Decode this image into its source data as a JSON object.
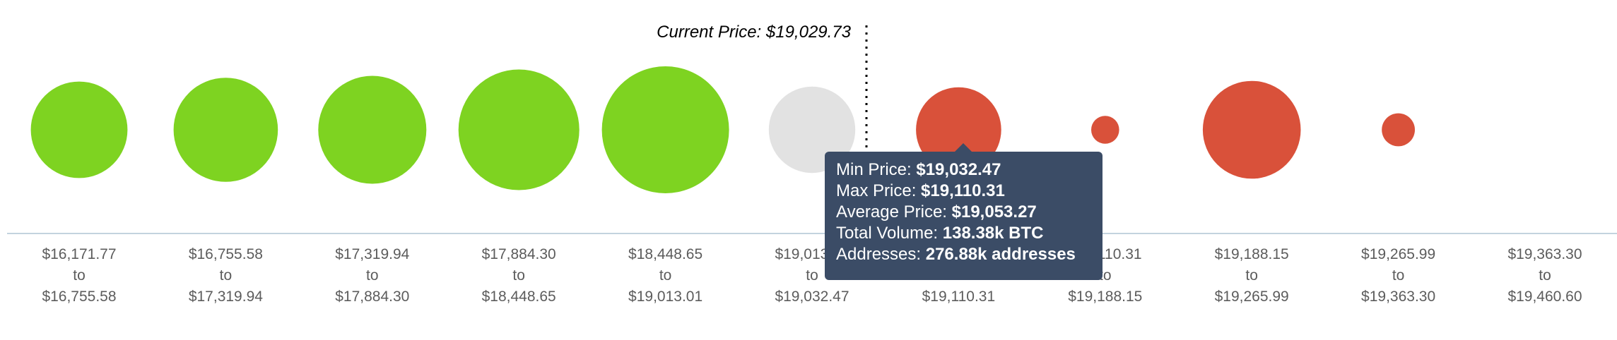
{
  "chart_data": {
    "type": "bubble",
    "current_price_text": "Current Price: $19,029.73",
    "current_price": 19029.73,
    "bins": [
      {
        "from": "$16,171.77",
        "to": "$16,755.58",
        "status": "in_money",
        "size": 0.76
      },
      {
        "from": "$16,755.58",
        "to": "$17,319.94",
        "status": "in_money",
        "size": 0.82
      },
      {
        "from": "$17,319.94",
        "to": "$17,884.30",
        "status": "in_money",
        "size": 0.85
      },
      {
        "from": "$17,884.30",
        "to": "$18,448.65",
        "status": "in_money",
        "size": 0.95
      },
      {
        "from": "$18,448.65",
        "to": "$19,013.01",
        "status": "in_money",
        "size": 1.0
      },
      {
        "from": "$19,013.01",
        "to": "$19,032.47",
        "status": "at_money",
        "size": 0.68
      },
      {
        "from": "$19,032.47",
        "to": "$19,110.31",
        "status": "out_money",
        "size": 0.67
      },
      {
        "from": "$19,110.31",
        "to": "$19,188.15",
        "status": "out_money",
        "size": 0.22
      },
      {
        "from": "$19,188.15",
        "to": "$19,265.99",
        "status": "out_money",
        "size": 0.77
      },
      {
        "from": "$19,265.99",
        "to": "$19,363.30",
        "status": "out_money",
        "size": 0.26
      },
      {
        "from": "$19,363.30",
        "to": "$19,460.60",
        "status": "out_money",
        "size": 0.0
      }
    ],
    "range_word": "to",
    "colors": {
      "in_money": "#7ed321",
      "at_money": "#e2e2e2",
      "out_money": "#d9513a",
      "axis": "#c3d3de",
      "price_line": "#000000"
    },
    "tooltip": {
      "bin_index": 6,
      "rows": [
        {
          "label": "Min Price: ",
          "value": "$19,032.47"
        },
        {
          "label": "Max Price: ",
          "value": "$19,110.31"
        },
        {
          "label": "Average Price: ",
          "value": "$19,053.27"
        },
        {
          "label": "Total Volume: ",
          "value": "138.38k BTC"
        },
        {
          "label": "Addresses: ",
          "value": "276.88k addresses"
        }
      ]
    }
  }
}
